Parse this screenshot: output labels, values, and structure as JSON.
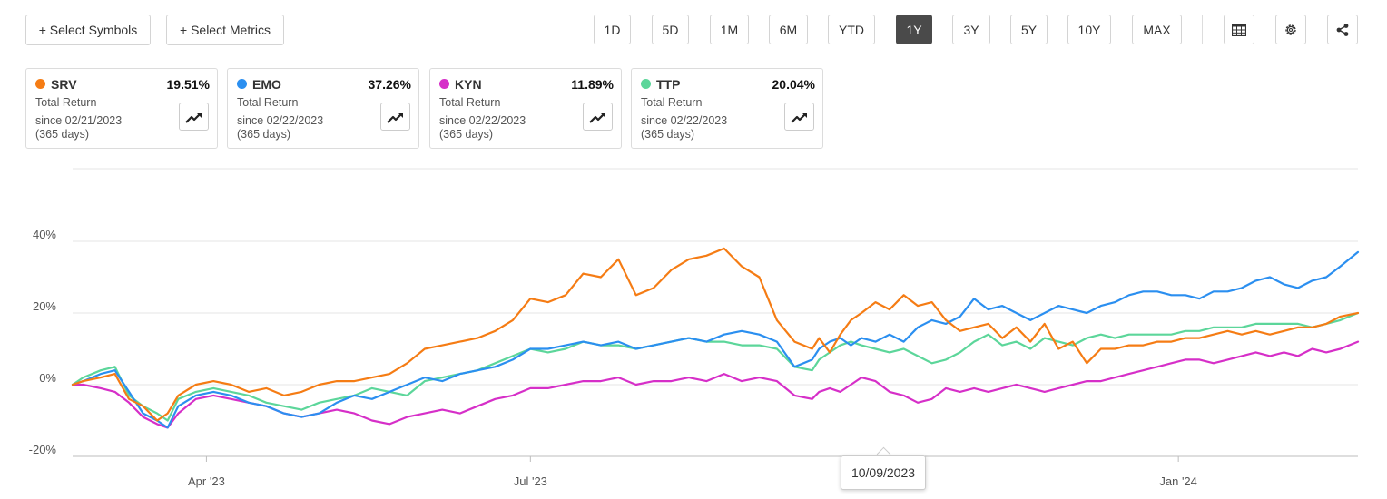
{
  "toolbar": {
    "select_symbols": "+ Select Symbols",
    "select_metrics": "+ Select Metrics",
    "ranges": [
      "1D",
      "5D",
      "1M",
      "6M",
      "YTD",
      "1Y",
      "3Y",
      "5Y",
      "10Y",
      "MAX"
    ],
    "active_range": "1Y",
    "icons": [
      "table-icon",
      "settings-gear-icon",
      "share-icon"
    ]
  },
  "cards": [
    {
      "symbol": "SRV",
      "value": "19.51%",
      "label": "Total Return",
      "since": "since 02/21/2023",
      "days": "(365 days)",
      "color": "#f57c14"
    },
    {
      "symbol": "EMO",
      "value": "37.26%",
      "label": "Total Return",
      "since": "since 02/22/2023",
      "days": "(365 days)",
      "color": "#2b8ff0"
    },
    {
      "symbol": "KYN",
      "value": "11.89%",
      "label": "Total Return",
      "since": "since 02/22/2023",
      "days": "(365 days)",
      "color": "#d62fc8"
    },
    {
      "symbol": "TTP",
      "value": "20.04%",
      "label": "Total Return",
      "since": "since 02/22/2023",
      "days": "(365 days)",
      "color": "#5cd69a"
    }
  ],
  "tooltip": {
    "date": "10/09/2023"
  },
  "chart_data": {
    "type": "line",
    "ylim": [
      -20,
      45
    ],
    "y_ticks": [
      40,
      20,
      0,
      -20
    ],
    "y_tick_labels": [
      "40%",
      "20%",
      "0%",
      "-20%"
    ],
    "x_ticks": [
      "Apr '23",
      "Jul '23",
      "Jan '24"
    ],
    "x_range_days": [
      0,
      365
    ],
    "x_tick_days": [
      38,
      130,
      314
    ],
    "grid": true,
    "series": [
      {
        "name": "SRV",
        "color": "#f57c14",
        "x": [
          0,
          3,
          8,
          12,
          16,
          20,
          24,
          27,
          30,
          35,
          40,
          45,
          50,
          55,
          60,
          65,
          70,
          75,
          80,
          85,
          90,
          95,
          100,
          105,
          110,
          115,
          120,
          125,
          130,
          135,
          140,
          145,
          150,
          155,
          160,
          165,
          170,
          175,
          180,
          185,
          190,
          195,
          200,
          205,
          210,
          212,
          215,
          218,
          221,
          224,
          228,
          232,
          236,
          240,
          244,
          248,
          252,
          256,
          260,
          264,
          268,
          272,
          276,
          280,
          284,
          288,
          292,
          296,
          300,
          304,
          308,
          312,
          316,
          320,
          324,
          328,
          332,
          336,
          340,
          344,
          348,
          352,
          356,
          360,
          365
        ],
        "y": [
          0,
          1,
          2,
          3,
          -4,
          -6,
          -10,
          -8,
          -3,
          0,
          1,
          0,
          -2,
          -1,
          -3,
          -2,
          0,
          1,
          1,
          2,
          3,
          6,
          10,
          11,
          12,
          13,
          15,
          18,
          24,
          23,
          25,
          31,
          30,
          35,
          25,
          27,
          32,
          35,
          36,
          38,
          33,
          30,
          18,
          12,
          10,
          13,
          9,
          14,
          18,
          20,
          23,
          21,
          25,
          22,
          23,
          18,
          15,
          16,
          17,
          13,
          16,
          12,
          17,
          10,
          12,
          6,
          10,
          10,
          11,
          11,
          12,
          12,
          13,
          13,
          14,
          15,
          14,
          15,
          14,
          15,
          16,
          16,
          17,
          19,
          20
        ]
      },
      {
        "name": "EMO",
        "color": "#2b8ff0",
        "x": [
          0,
          3,
          8,
          12,
          16,
          20,
          24,
          27,
          30,
          35,
          40,
          45,
          50,
          55,
          60,
          65,
          70,
          75,
          80,
          85,
          90,
          95,
          100,
          105,
          110,
          115,
          120,
          125,
          130,
          135,
          140,
          145,
          150,
          155,
          160,
          165,
          170,
          175,
          180,
          185,
          190,
          195,
          200,
          205,
          210,
          212,
          215,
          218,
          221,
          224,
          228,
          232,
          236,
          240,
          244,
          248,
          252,
          256,
          260,
          264,
          268,
          272,
          276,
          280,
          284,
          288,
          292,
          296,
          300,
          304,
          308,
          312,
          316,
          320,
          324,
          328,
          332,
          336,
          340,
          344,
          348,
          352,
          356,
          360,
          365
        ],
        "y": [
          0,
          1,
          3,
          4,
          -2,
          -8,
          -10,
          -12,
          -6,
          -3,
          -2,
          -3,
          -5,
          -6,
          -8,
          -9,
          -8,
          -5,
          -3,
          -4,
          -2,
          0,
          2,
          1,
          3,
          4,
          5,
          7,
          10,
          10,
          11,
          12,
          11,
          12,
          10,
          11,
          12,
          13,
          12,
          14,
          15,
          14,
          12,
          5,
          7,
          10,
          12,
          13,
          11,
          13,
          12,
          14,
          12,
          16,
          18,
          17,
          19,
          24,
          21,
          22,
          20,
          18,
          20,
          22,
          21,
          20,
          22,
          23,
          25,
          26,
          26,
          25,
          25,
          24,
          26,
          26,
          27,
          29,
          30,
          28,
          27,
          29,
          30,
          33,
          37
        ]
      },
      {
        "name": "KYN",
        "color": "#d62fc8",
        "x": [
          0,
          3,
          8,
          12,
          16,
          20,
          24,
          27,
          30,
          35,
          40,
          45,
          50,
          55,
          60,
          65,
          70,
          75,
          80,
          85,
          90,
          95,
          100,
          105,
          110,
          115,
          120,
          125,
          130,
          135,
          140,
          145,
          150,
          155,
          160,
          165,
          170,
          175,
          180,
          185,
          190,
          195,
          200,
          205,
          210,
          212,
          215,
          218,
          221,
          224,
          228,
          232,
          236,
          240,
          244,
          248,
          252,
          256,
          260,
          264,
          268,
          272,
          276,
          280,
          284,
          288,
          292,
          296,
          300,
          304,
          308,
          312,
          316,
          320,
          324,
          328,
          332,
          336,
          340,
          344,
          348,
          352,
          356,
          360,
          365
        ],
        "y": [
          0,
          0,
          -1,
          -2,
          -5,
          -9,
          -11,
          -12,
          -8,
          -4,
          -3,
          -4,
          -5,
          -6,
          -8,
          -9,
          -8,
          -7,
          -8,
          -10,
          -11,
          -9,
          -8,
          -7,
          -8,
          -6,
          -4,
          -3,
          -1,
          -1,
          0,
          1,
          1,
          2,
          0,
          1,
          1,
          2,
          1,
          3,
          1,
          2,
          1,
          -3,
          -4,
          -2,
          -1,
          -2,
          0,
          2,
          1,
          -2,
          -3,
          -5,
          -4,
          -1,
          -2,
          -1,
          -2,
          -1,
          0,
          -1,
          -2,
          -1,
          0,
          1,
          1,
          2,
          3,
          4,
          5,
          6,
          7,
          7,
          6,
          7,
          8,
          9,
          8,
          9,
          8,
          10,
          9,
          10,
          12
        ]
      },
      {
        "name": "TTP",
        "color": "#5cd69a",
        "x": [
          0,
          3,
          8,
          12,
          16,
          20,
          24,
          27,
          30,
          35,
          40,
          45,
          50,
          55,
          60,
          65,
          70,
          75,
          80,
          85,
          90,
          95,
          100,
          105,
          110,
          115,
          120,
          125,
          130,
          135,
          140,
          145,
          150,
          155,
          160,
          165,
          170,
          175,
          180,
          185,
          190,
          195,
          200,
          205,
          210,
          212,
          215,
          218,
          221,
          224,
          228,
          232,
          236,
          240,
          244,
          248,
          252,
          256,
          260,
          264,
          268,
          272,
          276,
          280,
          284,
          288,
          292,
          296,
          300,
          304,
          308,
          312,
          316,
          320,
          324,
          328,
          332,
          336,
          340,
          344,
          348,
          352,
          356,
          360,
          365
        ],
        "y": [
          0,
          2,
          4,
          5,
          -3,
          -6,
          -8,
          -10,
          -4,
          -2,
          -1,
          -2,
          -3,
          -5,
          -6,
          -7,
          -5,
          -4,
          -3,
          -1,
          -2,
          -3,
          1,
          2,
          3,
          4,
          6,
          8,
          10,
          9,
          10,
          12,
          11,
          11,
          10,
          11,
          12,
          13,
          12,
          12,
          11,
          11,
          10,
          5,
          4,
          7,
          9,
          11,
          12,
          11,
          10,
          9,
          10,
          8,
          6,
          7,
          9,
          12,
          14,
          11,
          12,
          10,
          13,
          12,
          11,
          13,
          14,
          13,
          14,
          14,
          14,
          14,
          15,
          15,
          16,
          16,
          16,
          17,
          17,
          17,
          17,
          16,
          17,
          18,
          20
        ]
      }
    ]
  }
}
